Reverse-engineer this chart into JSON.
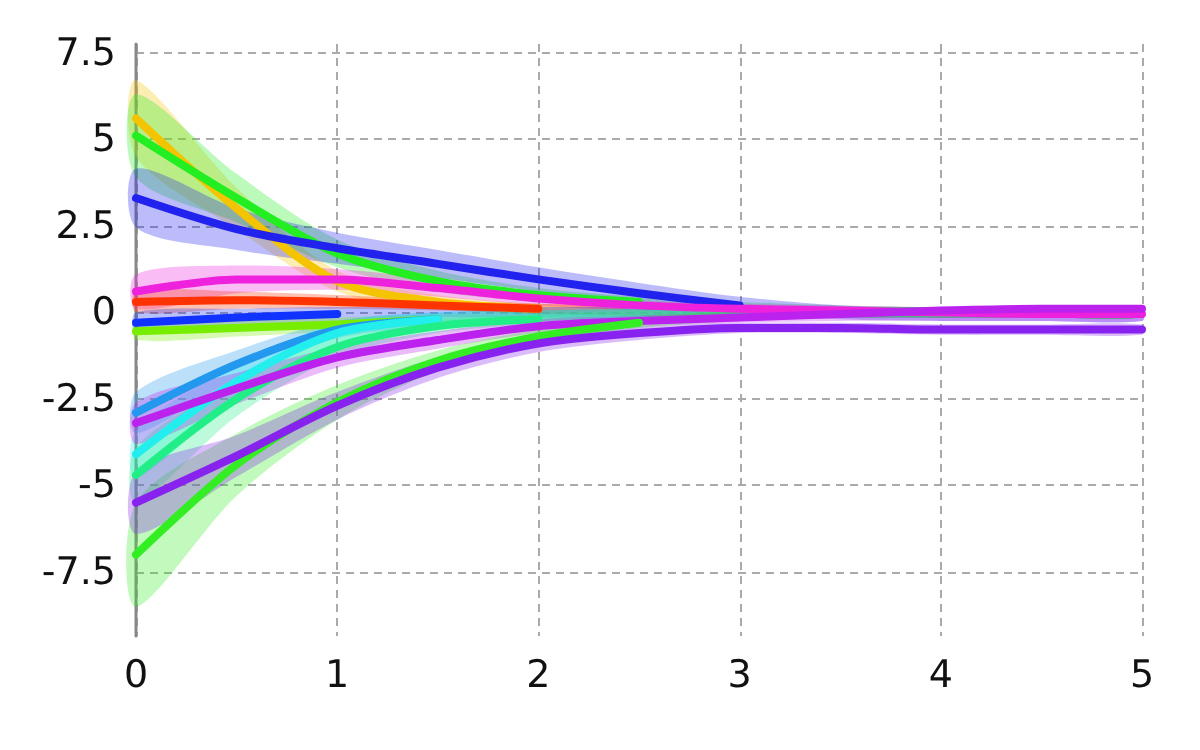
{
  "chart_data": {
    "type": "line",
    "x": [
      0,
      0.5,
      1,
      1.5,
      2,
      2.5,
      3,
      3.5,
      4,
      4.5,
      5
    ],
    "xlim": [
      0,
      5
    ],
    "xticks": [
      0,
      1,
      2,
      3,
      4,
      5
    ],
    "ylim": [
      -9.35,
      7.75
    ],
    "yticks": [
      -7.5,
      -5,
      -2.5,
      0,
      2.5,
      5,
      7.5
    ],
    "grid": true,
    "marker": "none",
    "line_style": "solid",
    "series": [
      {
        "color": "#f5c400",
        "values": [
          5.6,
          3.0,
          0.9,
          0.3,
          0.1,
          null,
          null,
          null,
          null,
          null,
          null
        ],
        "lower": [
          4.5,
          2.4,
          0.6,
          0.1,
          -0.05,
          -0.1,
          -0.15,
          -0.15,
          -0.15,
          -0.15,
          -0.15
        ],
        "upper": [
          6.7,
          3.6,
          1.2,
          0.5,
          0.25,
          0.2,
          0.15,
          0.15,
          0.15,
          0.15,
          0.15
        ]
      },
      {
        "color": "#22ee22",
        "values": [
          5.1,
          3.3,
          1.7,
          0.9,
          0.5,
          0.3,
          null,
          null,
          null,
          null,
          null
        ],
        "lower": [
          3.9,
          2.6,
          1.3,
          0.6,
          0.3,
          0.15,
          0,
          -0.1,
          -0.15,
          -0.15,
          -0.15
        ],
        "upper": [
          6.3,
          4.0,
          2.1,
          1.2,
          0.7,
          0.45,
          0.3,
          0.2,
          0.15,
          0.15,
          0.15
        ]
      },
      {
        "color": "#2222ee",
        "values": [
          3.3,
          2.4,
          1.85,
          1.4,
          0.95,
          0.55,
          0.2,
          null,
          null,
          null,
          null
        ],
        "lower": [
          2.45,
          1.8,
          1.4,
          1.0,
          0.6,
          0.25,
          -0.05,
          -0.2,
          -0.25,
          -0.25,
          -0.25
        ],
        "upper": [
          4.15,
          3.0,
          2.3,
          1.8,
          1.3,
          0.85,
          0.45,
          0.2,
          0.15,
          0.15,
          0.15
        ]
      },
      {
        "color": "#ee22dd",
        "values": [
          0.6,
          0.95,
          0.95,
          0.7,
          0.4,
          0.2,
          0.1,
          0.05,
          0,
          -0.05,
          -0.05
        ],
        "lower": [
          0.1,
          0.55,
          0.65,
          0.45,
          0.2,
          0.05,
          -0.05,
          -0.1,
          -0.15,
          -0.15,
          -0.15
        ],
        "upper": [
          1.1,
          1.35,
          1.25,
          0.95,
          0.6,
          0.35,
          0.25,
          0.2,
          0.15,
          0.15,
          0.15
        ]
      },
      {
        "color": "#ff3300",
        "values": [
          0.3,
          0.35,
          0.3,
          0.2,
          0.1,
          null,
          null,
          null,
          null,
          null,
          null
        ],
        "lower": [
          0,
          0.1,
          0.1,
          0.05,
          -0.05,
          -0.1,
          -0.15,
          -0.15,
          -0.15,
          -0.15,
          -0.15
        ],
        "upper": [
          0.6,
          0.6,
          0.5,
          0.35,
          0.25,
          0.2,
          0.15,
          0.15,
          0.15,
          0.15,
          0.15
        ]
      },
      {
        "color": "#1133ff",
        "values": [
          -0.3,
          -0.15,
          -0.05,
          null,
          null,
          null,
          null,
          null,
          null,
          null,
          null
        ],
        "lower": [
          -0.6,
          -0.4,
          -0.25,
          -0.15,
          -0.15,
          -0.15,
          -0.15,
          -0.15,
          -0.15,
          -0.15,
          -0.15
        ],
        "upper": [
          0,
          0.1,
          0.15,
          0.15,
          0.15,
          0.15,
          0.15,
          0.15,
          0.15,
          0.15,
          0.15
        ]
      },
      {
        "color": "#77ee00",
        "values": [
          -0.55,
          -0.45,
          -0.35,
          -0.2,
          null,
          null,
          null,
          null,
          null,
          null,
          null
        ],
        "lower": [
          -0.8,
          -0.7,
          -0.55,
          -0.35,
          -0.25,
          -0.2,
          -0.15,
          -0.15,
          -0.15,
          -0.15,
          -0.15
        ],
        "upper": [
          -0.3,
          -0.2,
          -0.15,
          -0.05,
          0.05,
          0.1,
          0.15,
          0.15,
          0.15,
          0.15,
          0.15
        ]
      },
      {
        "color": "#2299ee",
        "values": [
          -2.9,
          -1.5,
          -0.5,
          -0.2,
          null,
          null,
          null,
          null,
          null,
          null,
          null
        ],
        "lower": [
          -3.5,
          -1.9,
          -0.75,
          -0.4,
          -0.25,
          -0.2,
          -0.15,
          -0.15,
          -0.15,
          -0.15,
          -0.15
        ],
        "upper": [
          -2.3,
          -1.1,
          -0.25,
          0,
          0.05,
          0.1,
          0.15,
          0.15,
          0.15,
          0.15,
          0.15
        ]
      },
      {
        "color": "#22eeee",
        "values": [
          -4.1,
          -2.0,
          -0.6,
          -0.2,
          null,
          null,
          null,
          null,
          null,
          null,
          null
        ],
        "lower": [
          -4.8,
          -2.45,
          -0.9,
          -0.4,
          -0.25,
          -0.2,
          -0.15,
          -0.15,
          -0.15,
          -0.15,
          -0.15
        ],
        "upper": [
          -3.4,
          -1.55,
          -0.3,
          0,
          0.05,
          0.1,
          0.15,
          0.15,
          0.15,
          0.15,
          0.15
        ]
      },
      {
        "color": "#22ee88",
        "values": [
          -4.7,
          -2.5,
          -1.0,
          -0.4,
          -0.2,
          null,
          null,
          null,
          null,
          null,
          null
        ],
        "lower": [
          -5.5,
          -3.0,
          -1.3,
          -0.6,
          -0.35,
          -0.25,
          -0.2,
          -0.15,
          -0.15,
          -0.15,
          -0.15
        ],
        "upper": [
          -3.9,
          -2.0,
          -0.7,
          -0.2,
          -0.05,
          0.05,
          0.1,
          0.15,
          0.15,
          0.15,
          0.15
        ]
      },
      {
        "color": "#bb22ee",
        "values": [
          -3.2,
          -2.2,
          -1.3,
          -0.8,
          -0.4,
          -0.25,
          -0.15,
          -0.05,
          0.05,
          0.1,
          0.1
        ],
        "lower": [
          -3.8,
          -2.65,
          -1.6,
          -1.05,
          -0.6,
          -0.4,
          -0.3,
          -0.25,
          -0.25,
          -0.25,
          -0.25
        ],
        "upper": [
          -2.6,
          -1.75,
          -1.0,
          -0.55,
          -0.2,
          -0.1,
          0,
          0.05,
          0.05,
          0.05,
          0.05
        ]
      },
      {
        "color": "#33ee22",
        "values": [
          -7.0,
          -4.4,
          -2.6,
          -1.4,
          -0.7,
          -0.3,
          null,
          null,
          null,
          null,
          null
        ],
        "lower": [
          -8.5,
          -5.3,
          -3.1,
          -1.7,
          -0.9,
          -0.45,
          -0.25,
          -0.15,
          -0.15,
          -0.15,
          -0.15
        ],
        "upper": [
          -5.5,
          -3.5,
          -2.1,
          -1.1,
          -0.5,
          -0.15,
          0.05,
          0.15,
          0.15,
          0.15,
          0.15
        ]
      },
      {
        "color": "#8822ee",
        "values": [
          -5.5,
          -4.15,
          -2.7,
          -1.6,
          -0.9,
          -0.6,
          -0.45,
          -0.45,
          -0.5,
          -0.5,
          -0.5
        ],
        "lower": [
          -6.4,
          -4.75,
          -3.1,
          -1.9,
          -1.15,
          -0.8,
          -0.6,
          -0.6,
          -0.65,
          -0.65,
          -0.65
        ],
        "upper": [
          -4.6,
          -3.55,
          -2.3,
          -1.3,
          -0.65,
          -0.4,
          -0.3,
          -0.3,
          -0.35,
          -0.35,
          -0.35
        ]
      }
    ]
  }
}
